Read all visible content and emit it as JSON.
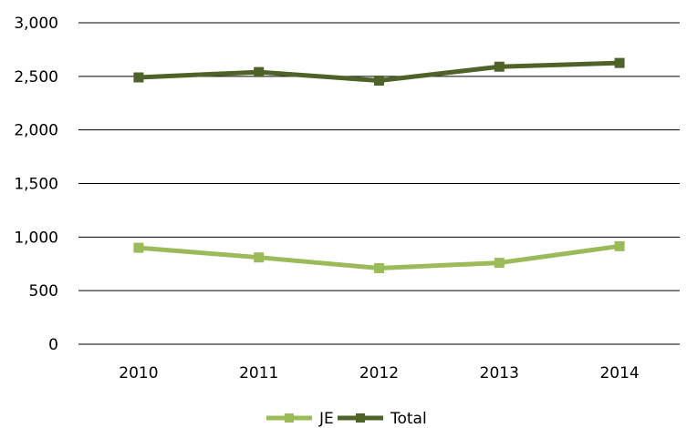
{
  "chart_data": {
    "type": "line",
    "categories": [
      "2010",
      "2011",
      "2012",
      "2013",
      "2014"
    ],
    "series": [
      {
        "name": "JE",
        "values": [
          900,
          810,
          710,
          760,
          915
        ],
        "color": "#9bbb59"
      },
      {
        "name": "Total",
        "values": [
          2490,
          2540,
          2460,
          2590,
          2625
        ],
        "color": "#4f6228"
      }
    ],
    "ylim": [
      0,
      3000
    ],
    "yticks": [
      0,
      500,
      1000,
      1500,
      2000,
      2500,
      3000
    ],
    "ytick_labels": [
      "0",
      "500",
      "1,000",
      "1,500",
      "2,000",
      "2,500",
      "3,000"
    ],
    "grid": true,
    "legend": "bottom"
  }
}
